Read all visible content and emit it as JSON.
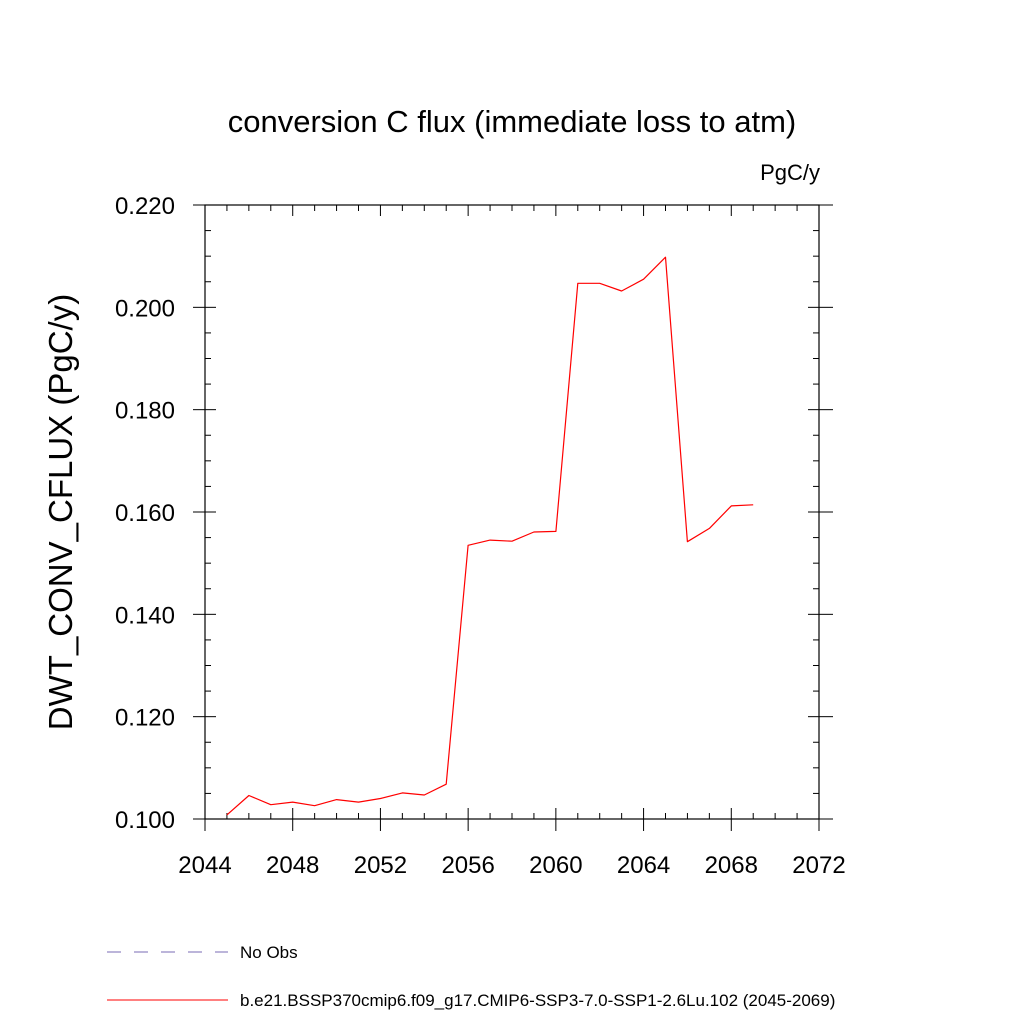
{
  "chart_data": {
    "type": "line",
    "title": "conversion C flux (immediate loss to atm)",
    "units": "PgC/y",
    "xlabel": "",
    "ylabel": "DWT_CONV_CFLUX  (PgC/y)",
    "xlim": [
      2044,
      2072
    ],
    "ylim": [
      0.1,
      0.22
    ],
    "xticks": [
      2044,
      2048,
      2052,
      2056,
      2060,
      2064,
      2068,
      2072
    ],
    "xtick_labels": [
      "2044",
      "2048",
      "2052",
      "2056",
      "2060",
      "2064",
      "2068",
      "2072"
    ],
    "yticks": [
      0.1,
      0.12,
      0.14,
      0.16,
      0.18,
      0.2,
      0.22
    ],
    "ytick_labels": [
      "0.100",
      "0.120",
      "0.140",
      "0.160",
      "0.180",
      "0.200",
      "0.220"
    ],
    "grid": false,
    "legend_position": "bottom-left",
    "series": [
      {
        "name": "b.e21.BSSP370cmip6.f09_g17.CMIP6-SSP3-7.0-SSP1-2.6Lu.102 (2045-2069)",
        "color": "#ff0000",
        "style": "solid",
        "x": [
          2045,
          2046,
          2047,
          2048,
          2049,
          2050,
          2051,
          2052,
          2053,
          2054,
          2055,
          2056,
          2057,
          2058,
          2059,
          2060,
          2061,
          2062,
          2063,
          2064,
          2065,
          2066,
          2067,
          2068,
          2069
        ],
        "y": [
          0.1008,
          0.1046,
          0.1028,
          0.1033,
          0.1026,
          0.1038,
          0.1033,
          0.104,
          0.1051,
          0.1047,
          0.1068,
          0.1535,
          0.1545,
          0.1543,
          0.1561,
          0.1562,
          0.2047,
          0.2047,
          0.2032,
          0.2055,
          0.2098,
          0.1542,
          0.1568,
          0.1612,
          0.1614
        ]
      }
    ],
    "legend": [
      {
        "label": "No Obs",
        "color": "#7a6bb5",
        "style": "dashed"
      },
      {
        "label": "b.e21.BSSP370cmip6.f09_g17.CMIP6-SSP3-7.0-SSP1-2.6Lu.102 (2045-2069)",
        "color": "#ff0000",
        "style": "solid"
      }
    ]
  }
}
